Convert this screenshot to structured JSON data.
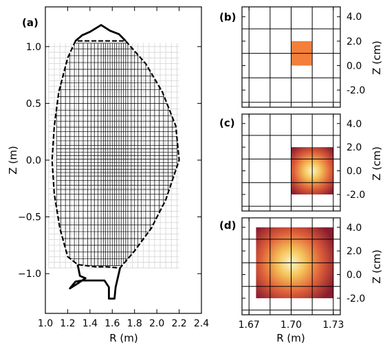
{
  "chart_data": [
    {
      "type": "other",
      "panel_label": "(a)",
      "xlabel": "R (m)",
      "ylabel": "Z (m)",
      "xlim": [
        1.0,
        2.4
      ],
      "ylim": [
        -1.35,
        1.35
      ],
      "xticks": [
        1.0,
        1.2,
        1.4,
        1.6,
        1.8,
        2.0,
        2.2,
        2.4
      ],
      "xtick_labels": [
        "1.0",
        "1.2",
        "1.4",
        "1.6",
        "1.8",
        "2.0",
        "2.2",
        "2.4"
      ],
      "yticks": [
        -1.0,
        -0.5,
        0.0,
        0.5,
        1.0
      ],
      "ytick_labels": [
        "−1.0",
        "−0.5",
        "0.0",
        "0.5",
        "1.0"
      ],
      "background_grid": {
        "r_range": [
          1.03,
          2.2
        ],
        "z_range": [
          -0.95,
          1.03
        ],
        "dr": 0.05,
        "dz": 0.05,
        "color": "#d3d3d3"
      },
      "mesh": {
        "r_range": [
          1.1,
          2.18
        ],
        "z_range": [
          -0.93,
          1.03
        ],
        "r_lines": [
          1.1,
          1.14,
          1.18,
          1.22,
          1.26,
          1.3,
          1.34,
          1.38,
          1.41,
          1.44,
          1.47,
          1.5,
          1.52,
          1.54,
          1.56,
          1.58,
          1.6,
          1.62,
          1.64,
          1.66,
          1.68,
          1.7,
          1.72,
          1.74,
          1.77,
          1.8,
          1.83,
          1.86,
          1.9,
          1.94,
          1.98,
          2.02,
          2.06,
          2.1,
          2.14,
          2.18
        ],
        "z_lines": [
          -0.93,
          -0.87,
          -0.81,
          -0.75,
          -0.69,
          -0.63,
          -0.57,
          -0.51,
          -0.45,
          -0.4,
          -0.35,
          -0.3,
          -0.26,
          -0.22,
          -0.18,
          -0.14,
          -0.11,
          -0.08,
          -0.05,
          -0.02,
          0.01,
          0.04,
          0.07,
          0.1,
          0.13,
          0.17,
          0.21,
          0.25,
          0.29,
          0.34,
          0.39,
          0.44,
          0.5,
          0.56,
          0.62,
          0.68,
          0.74,
          0.8,
          0.86,
          0.92,
          0.98,
          1.03
        ],
        "color": "#000000"
      },
      "boundary_solid": {
        "top": [
          [
            1.27,
            1.05
          ],
          [
            1.33,
            1.1
          ],
          [
            1.4,
            1.13
          ],
          [
            1.5,
            1.19
          ],
          [
            1.58,
            1.14
          ],
          [
            1.66,
            1.11
          ],
          [
            1.72,
            1.05
          ]
        ],
        "bottom": [
          [
            1.29,
            -0.92
          ],
          [
            1.31,
            -1.02
          ],
          [
            1.36,
            -1.04
          ],
          [
            1.3,
            -1.08
          ],
          [
            1.22,
            -1.13
          ],
          [
            1.27,
            -1.07
          ],
          [
            1.33,
            -1.06
          ],
          [
            1.44,
            -1.06
          ],
          [
            1.53,
            -1.06
          ],
          [
            1.57,
            -1.12
          ],
          [
            1.57,
            -1.22
          ],
          [
            1.62,
            -1.22
          ],
          [
            1.63,
            -1.12
          ],
          [
            1.67,
            -0.95
          ]
        ],
        "color": "#000000"
      },
      "boundary_dashed": {
        "points": [
          [
            1.27,
            1.05
          ],
          [
            1.2,
            0.9
          ],
          [
            1.12,
            0.6
          ],
          [
            1.08,
            0.3
          ],
          [
            1.06,
            0.0
          ],
          [
            1.08,
            -0.3
          ],
          [
            1.13,
            -0.6
          ],
          [
            1.2,
            -0.85
          ],
          [
            1.29,
            -0.92
          ],
          [
            1.45,
            -0.94
          ],
          [
            1.55,
            -0.94
          ],
          [
            1.67,
            -0.95
          ],
          [
            1.8,
            -0.8
          ],
          [
            1.95,
            -0.6
          ],
          [
            2.08,
            -0.35
          ],
          [
            2.2,
            0.0
          ],
          [
            2.17,
            0.3
          ],
          [
            2.05,
            0.6
          ],
          [
            1.9,
            0.85
          ],
          [
            1.72,
            1.05
          ]
        ],
        "color": "#000000"
      }
    },
    {
      "type": "heatmap",
      "panel_label": "(b)",
      "ylabel": "Z (cm)",
      "xlim": [
        1.665,
        1.735
      ],
      "ylim": [
        -3.4,
        4.8
      ],
      "xticks": [
        1.67,
        1.7,
        1.73
      ],
      "yticks": [
        -2.0,
        0.0,
        2.0,
        4.0
      ],
      "ytick_labels": [
        "-2.0",
        "0.0",
        "2.0",
        "4.0"
      ],
      "grid_x": [
        1.67,
        1.685,
        1.7,
        1.715,
        1.73
      ],
      "grid_y": [
        -3.0,
        -1.0,
        1.0,
        3.0
      ],
      "regions": [
        {
          "profile": "uniform",
          "r_range": [
            1.7,
            1.715
          ],
          "z_range": [
            0.0,
            2.0
          ],
          "color": "#f47f3a"
        }
      ]
    },
    {
      "type": "heatmap",
      "panel_label": "(c)",
      "ylabel": "Z (cm)",
      "xlim": [
        1.665,
        1.735
      ],
      "ylim": [
        -3.4,
        4.8
      ],
      "xticks": [
        1.67,
        1.7,
        1.73
      ],
      "yticks": [
        -2.0,
        0.0,
        2.0,
        4.0
      ],
      "ytick_labels": [
        "-2.0",
        "0.0",
        "2.0",
        "4.0"
      ],
      "grid_x": [
        1.67,
        1.685,
        1.7,
        1.715,
        1.73
      ],
      "grid_y": [
        -3.0,
        -1.0,
        1.0,
        3.0
      ],
      "regions": [
        {
          "profile": "gaussian",
          "r_range": [
            1.7,
            1.73
          ],
          "z_range": [
            -2.0,
            2.0
          ],
          "peak_r": 1.715,
          "peak_z": 0.0,
          "colors": [
            "#fff6c8",
            "#f5c35a",
            "#e0623a",
            "#8a1c30"
          ]
        }
      ]
    },
    {
      "type": "heatmap",
      "panel_label": "(d)",
      "xlabel": "R (m)",
      "ylabel": "Z (cm)",
      "xlim": [
        1.665,
        1.735
      ],
      "ylim": [
        -3.4,
        4.8
      ],
      "xticks": [
        1.67,
        1.7,
        1.73
      ],
      "xtick_labels": [
        "1.67",
        "1.70",
        "1.73"
      ],
      "yticks": [
        -2.0,
        0.0,
        2.0,
        4.0
      ],
      "ytick_labels": [
        "-2.0",
        "0.0",
        "2.0",
        "4.0"
      ],
      "grid_x": [
        1.67,
        1.685,
        1.7,
        1.715,
        1.73
      ],
      "grid_y": [
        -3.0,
        -1.0,
        1.0,
        3.0
      ],
      "regions": [
        {
          "profile": "gaussian",
          "r_range": [
            1.675,
            1.73
          ],
          "z_range": [
            -2.0,
            4.0
          ],
          "peak_r": 1.7,
          "peak_z": 1.0,
          "colors": [
            "#fff6c8",
            "#f5c35a",
            "#e0623a",
            "#8a1c30"
          ]
        }
      ]
    }
  ]
}
